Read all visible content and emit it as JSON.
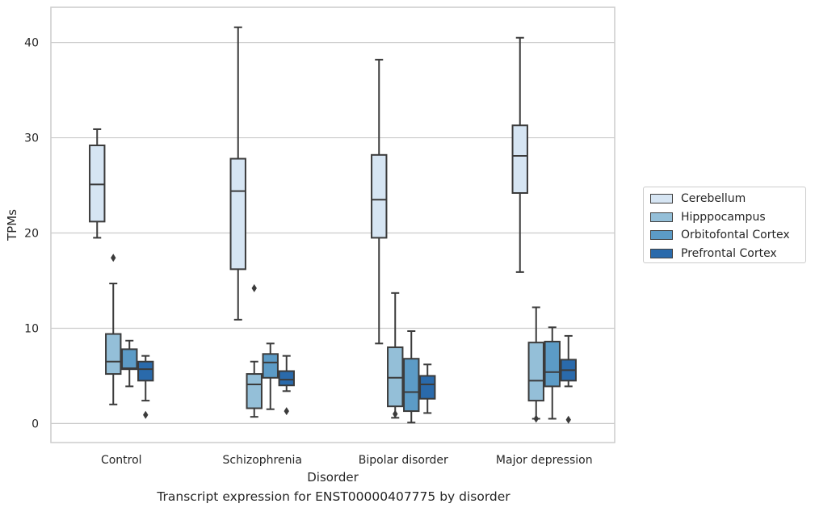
{
  "chart_data": {
    "type": "box",
    "title": "",
    "caption": "Transcript expression for ENST00000407775 by disorder",
    "xlabel": "Disorder",
    "ylabel": "TPMs",
    "ylim": [
      -2,
      43.7
    ],
    "yticks": [
      0,
      10,
      20,
      30,
      40
    ],
    "grid": "horizontal",
    "legend_position": "right",
    "categories": [
      "Control",
      "Schizophrenia",
      "Bipolar disorder",
      "Major depression"
    ],
    "series": [
      {
        "name": "Cerebellum",
        "color": "#d6e5f3",
        "boxes": [
          {
            "whisker_low": 19.5,
            "q1": 21.2,
            "median": 25.1,
            "q3": 29.2,
            "whisker_high": 30.9,
            "outliers": []
          },
          {
            "whisker_low": 10.9,
            "q1": 16.2,
            "median": 24.4,
            "q3": 27.8,
            "whisker_high": 41.6,
            "outliers": []
          },
          {
            "whisker_low": 8.4,
            "q1": 19.5,
            "median": 23.5,
            "q3": 28.2,
            "whisker_high": 38.2,
            "outliers": []
          },
          {
            "whisker_low": 15.9,
            "q1": 24.2,
            "median": 28.1,
            "q3": 31.3,
            "whisker_high": 40.5,
            "outliers": []
          }
        ]
      },
      {
        "name": "Hipppocampus",
        "color": "#94bfd8",
        "boxes": [
          {
            "whisker_low": 2.0,
            "q1": 5.2,
            "median": 6.5,
            "q3": 9.4,
            "whisker_high": 14.7,
            "outliers": [
              17.4
            ]
          },
          {
            "whisker_low": 0.7,
            "q1": 1.6,
            "median": 4.1,
            "q3": 5.2,
            "whisker_high": 6.5,
            "outliers": [
              14.2
            ]
          },
          {
            "whisker_low": 0.6,
            "q1": 1.8,
            "median": 4.8,
            "q3": 8.0,
            "whisker_high": 13.7,
            "outliers": [
              1.0
            ]
          },
          {
            "whisker_low": 0.5,
            "q1": 2.4,
            "median": 4.5,
            "q3": 8.5,
            "whisker_high": 12.2,
            "outliers": [
              0.5
            ]
          }
        ]
      },
      {
        "name": "Orbitofontal Cortex",
        "color": "#5c9bc6",
        "boxes": [
          {
            "whisker_low": 3.9,
            "q1": 5.7,
            "median": 5.8,
            "q3": 7.8,
            "whisker_high": 8.7,
            "outliers": []
          },
          {
            "whisker_low": 1.5,
            "q1": 4.8,
            "median": 6.4,
            "q3": 7.3,
            "whisker_high": 8.4,
            "outliers": []
          },
          {
            "whisker_low": 0.1,
            "q1": 1.3,
            "median": 3.3,
            "q3": 6.8,
            "whisker_high": 9.7,
            "outliers": []
          },
          {
            "whisker_low": 0.5,
            "q1": 3.9,
            "median": 5.4,
            "q3": 8.6,
            "whisker_high": 10.1,
            "outliers": []
          }
        ]
      },
      {
        "name": "Prefrontal Cortex",
        "color": "#2a6aab",
        "boxes": [
          {
            "whisker_low": 2.4,
            "q1": 4.5,
            "median": 5.7,
            "q3": 6.5,
            "whisker_high": 7.1,
            "outliers": [
              0.9
            ]
          },
          {
            "whisker_low": 3.4,
            "q1": 4.0,
            "median": 4.6,
            "q3": 5.5,
            "whisker_high": 7.1,
            "outliers": [
              1.3
            ]
          },
          {
            "whisker_low": 1.1,
            "q1": 2.6,
            "median": 4.1,
            "q3": 5.0,
            "whisker_high": 6.2,
            "outliers": []
          },
          {
            "whisker_low": 3.9,
            "q1": 4.5,
            "median": 5.6,
            "q3": 6.7,
            "whisker_high": 9.2,
            "outliers": [
              0.4
            ]
          }
        ]
      }
    ]
  }
}
